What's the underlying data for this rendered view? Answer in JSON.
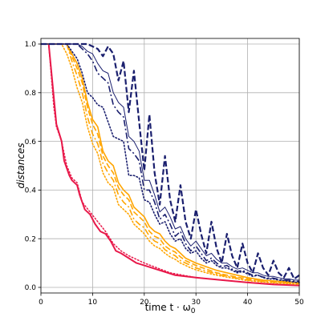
{
  "chart_data": {
    "type": "line",
    "xlabel": "time t · ω",
    "xlabel_subscript": "0",
    "ylabel": "distances",
    "xlim": [
      0,
      50
    ],
    "ylim": [
      0,
      1
    ],
    "x_ticks": [
      0,
      10,
      20,
      30,
      40,
      50
    ],
    "y_ticks": [
      0.0,
      0.2,
      0.4,
      0.6,
      0.8,
      1.0
    ],
    "x_tick_labels": [
      "0",
      "10",
      "20",
      "30",
      "40",
      "50"
    ],
    "y_tick_labels": [
      "0.0",
      "0.2",
      "0.4",
      "0.6",
      "0.8",
      "1.0"
    ],
    "grid": true,
    "series": [
      {
        "color": "#e8194a",
        "style": "solid",
        "width": 2.0,
        "x": [
          0,
          1.5,
          2.5,
          3,
          4,
          4.5,
          5.5,
          6,
          7,
          7.5,
          8.5,
          9.5,
          10.5,
          11.5,
          12.5,
          13.5,
          14.5,
          15.5,
          17,
          18.5,
          20,
          23,
          26,
          30,
          35,
          40,
          45,
          50
        ],
        "y": [
          1.0,
          1.0,
          0.78,
          0.67,
          0.6,
          0.52,
          0.46,
          0.44,
          0.42,
          0.38,
          0.32,
          0.3,
          0.26,
          0.23,
          0.22,
          0.19,
          0.15,
          0.14,
          0.12,
          0.1,
          0.09,
          0.07,
          0.05,
          0.04,
          0.03,
          0.02,
          0.012,
          0.008
        ]
      },
      {
        "color": "#e8194a",
        "style": "dotted",
        "width": 1.5,
        "x": [
          0,
          1.5,
          2.5,
          3,
          4,
          5,
          6,
          7,
          8,
          9.5,
          11,
          12.5,
          14,
          15.5,
          17,
          20,
          25,
          30,
          40,
          50
        ],
        "y": [
          1.0,
          1.0,
          0.74,
          0.66,
          0.6,
          0.5,
          0.45,
          0.43,
          0.35,
          0.31,
          0.27,
          0.23,
          0.18,
          0.15,
          0.13,
          0.1,
          0.06,
          0.04,
          0.02,
          0.008
        ]
      },
      {
        "color": "#ffa500",
        "style": "solid",
        "width": 1.6,
        "x": [
          0,
          5,
          6,
          7,
          8,
          9,
          10,
          11,
          12,
          13,
          14,
          15,
          16,
          17,
          18,
          19,
          20,
          21,
          22,
          23,
          24,
          25,
          26,
          27,
          28,
          29,
          30,
          32,
          34,
          36,
          38,
          40,
          43,
          46,
          50
        ],
        "y": [
          1.0,
          1.0,
          0.96,
          0.92,
          0.86,
          0.76,
          0.69,
          0.66,
          0.56,
          0.52,
          0.5,
          0.43,
          0.4,
          0.38,
          0.33,
          0.31,
          0.29,
          0.25,
          0.23,
          0.22,
          0.19,
          0.17,
          0.16,
          0.14,
          0.12,
          0.11,
          0.1,
          0.085,
          0.07,
          0.06,
          0.05,
          0.04,
          0.03,
          0.025,
          0.02
        ]
      },
      {
        "color": "#ffa500",
        "style": "dashed",
        "width": 1.6,
        "x": [
          0,
          5,
          6,
          7,
          8,
          9,
          10,
          11,
          12,
          13,
          14,
          15,
          16,
          17,
          18,
          19,
          20,
          21,
          22,
          23,
          24,
          25,
          26,
          27,
          28,
          29,
          30,
          32,
          34,
          36,
          38,
          40,
          43,
          46,
          50
        ],
        "y": [
          1.0,
          1.0,
          0.95,
          0.9,
          0.84,
          0.74,
          0.67,
          0.63,
          0.54,
          0.5,
          0.47,
          0.41,
          0.38,
          0.36,
          0.31,
          0.29,
          0.27,
          0.23,
          0.21,
          0.2,
          0.17,
          0.155,
          0.145,
          0.125,
          0.11,
          0.1,
          0.09,
          0.075,
          0.06,
          0.05,
          0.042,
          0.035,
          0.028,
          0.022,
          0.018
        ]
      },
      {
        "color": "#ffa500",
        "style": "dashdot",
        "width": 1.6,
        "x": [
          0,
          5,
          6,
          7,
          8,
          9,
          10,
          11,
          12,
          13,
          14,
          15,
          16,
          17,
          18,
          19,
          20,
          21,
          22,
          23,
          24,
          25,
          26,
          27,
          28,
          29,
          30,
          32,
          34,
          36,
          38,
          40,
          43,
          46,
          50
        ],
        "y": [
          1.0,
          1.0,
          0.93,
          0.87,
          0.8,
          0.7,
          0.63,
          0.59,
          0.51,
          0.47,
          0.44,
          0.38,
          0.35,
          0.33,
          0.28,
          0.26,
          0.245,
          0.21,
          0.19,
          0.18,
          0.155,
          0.14,
          0.13,
          0.11,
          0.1,
          0.09,
          0.08,
          0.067,
          0.055,
          0.046,
          0.038,
          0.03,
          0.025,
          0.02,
          0.015
        ]
      },
      {
        "color": "#ffa500",
        "style": "dotted",
        "width": 1.6,
        "x": [
          0,
          4,
          5,
          6,
          7,
          8,
          9,
          10,
          11,
          12,
          13,
          14,
          15,
          16,
          17,
          18,
          19,
          20,
          21,
          22,
          23,
          24,
          25,
          26,
          27,
          28,
          29,
          30,
          32,
          34,
          36,
          38,
          40,
          43,
          46,
          50
        ],
        "y": [
          1.0,
          1.0,
          0.96,
          0.9,
          0.82,
          0.76,
          0.66,
          0.59,
          0.55,
          0.47,
          0.43,
          0.41,
          0.34,
          0.32,
          0.3,
          0.26,
          0.24,
          0.22,
          0.19,
          0.17,
          0.16,
          0.14,
          0.125,
          0.115,
          0.1,
          0.09,
          0.08,
          0.072,
          0.06,
          0.05,
          0.042,
          0.035,
          0.028,
          0.022,
          0.017,
          0.013
        ]
      },
      {
        "color": "#1a1f6e",
        "style": "dashed",
        "width": 2.2,
        "x": [
          0,
          9,
          10,
          11,
          12,
          13,
          14,
          15,
          16,
          17,
          18,
          19,
          20,
          21,
          22,
          23,
          24,
          25,
          26,
          27,
          28,
          29,
          30,
          31,
          32,
          33,
          34,
          35,
          36,
          37,
          38,
          39,
          40,
          41,
          42,
          43,
          44,
          45,
          46,
          47,
          48,
          49,
          50
        ],
        "y": [
          1.0,
          1.0,
          0.99,
          0.98,
          0.95,
          0.99,
          0.96,
          0.85,
          0.93,
          0.72,
          0.89,
          0.68,
          0.48,
          0.71,
          0.47,
          0.34,
          0.54,
          0.36,
          0.27,
          0.42,
          0.27,
          0.2,
          0.32,
          0.22,
          0.14,
          0.27,
          0.16,
          0.1,
          0.22,
          0.13,
          0.08,
          0.18,
          0.1,
          0.06,
          0.14,
          0.08,
          0.05,
          0.11,
          0.06,
          0.04,
          0.08,
          0.035,
          0.05
        ]
      },
      {
        "color": "#1a1f6e",
        "style": "solid",
        "width": 1.0,
        "x": [
          0,
          7,
          8,
          9,
          10,
          11,
          12,
          13,
          14,
          15,
          16,
          17,
          18,
          19,
          20,
          21,
          22,
          23,
          24,
          25,
          26,
          27,
          28,
          29,
          30,
          31,
          32,
          33,
          34,
          35,
          36,
          37,
          38,
          39,
          40,
          41,
          42,
          43,
          44,
          45,
          46,
          47,
          48,
          49,
          50
        ],
        "y": [
          1.0,
          1.0,
          0.99,
          0.97,
          0.96,
          0.92,
          0.89,
          0.88,
          0.8,
          0.76,
          0.74,
          0.62,
          0.6,
          0.56,
          0.44,
          0.44,
          0.38,
          0.31,
          0.33,
          0.29,
          0.24,
          0.25,
          0.2,
          0.17,
          0.19,
          0.16,
          0.13,
          0.14,
          0.115,
          0.1,
          0.1,
          0.085,
          0.075,
          0.08,
          0.07,
          0.06,
          0.06,
          0.05,
          0.045,
          0.045,
          0.04,
          0.035,
          0.035,
          0.03,
          0.03
        ]
      },
      {
        "color": "#1a1f6e",
        "style": "dashdot",
        "width": 1.6,
        "x": [
          0,
          7,
          8,
          9,
          10,
          11,
          12,
          13,
          14,
          15,
          16,
          17,
          18,
          19,
          20,
          21,
          22,
          23,
          24,
          25,
          26,
          27,
          28,
          29,
          30,
          31,
          32,
          33,
          34,
          35,
          36,
          37,
          38,
          39,
          40,
          41,
          42,
          43,
          44,
          45,
          46,
          47,
          48,
          49,
          50
        ],
        "y": [
          1.0,
          1.0,
          0.98,
          0.96,
          0.93,
          0.88,
          0.86,
          0.84,
          0.75,
          0.72,
          0.7,
          0.57,
          0.55,
          0.52,
          0.4,
          0.4,
          0.35,
          0.28,
          0.3,
          0.26,
          0.21,
          0.23,
          0.18,
          0.15,
          0.17,
          0.14,
          0.11,
          0.12,
          0.1,
          0.085,
          0.09,
          0.075,
          0.065,
          0.07,
          0.06,
          0.05,
          0.05,
          0.042,
          0.038,
          0.038,
          0.033,
          0.03,
          0.03,
          0.025,
          0.025
        ]
      },
      {
        "color": "#1a1f6e",
        "style": "dotted",
        "width": 1.6,
        "x": [
          0,
          5,
          6,
          7,
          8,
          9,
          10,
          11,
          12,
          13,
          14,
          15,
          16,
          17,
          18,
          19,
          20,
          21,
          22,
          23,
          24,
          25,
          26,
          27,
          28,
          29,
          30,
          31,
          32,
          33,
          34,
          35,
          36,
          37,
          38,
          39,
          40,
          41,
          42,
          43,
          44,
          45,
          46,
          47,
          48,
          49,
          50
        ],
        "y": [
          1.0,
          1.0,
          0.97,
          0.94,
          0.88,
          0.8,
          0.78,
          0.75,
          0.74,
          0.68,
          0.62,
          0.61,
          0.6,
          0.46,
          0.46,
          0.45,
          0.36,
          0.35,
          0.3,
          0.26,
          0.27,
          0.22,
          0.19,
          0.2,
          0.16,
          0.14,
          0.15,
          0.12,
          0.1,
          0.11,
          0.09,
          0.08,
          0.08,
          0.07,
          0.06,
          0.065,
          0.055,
          0.045,
          0.05,
          0.04,
          0.035,
          0.035,
          0.03,
          0.028,
          0.025,
          0.022,
          0.02
        ]
      }
    ]
  }
}
